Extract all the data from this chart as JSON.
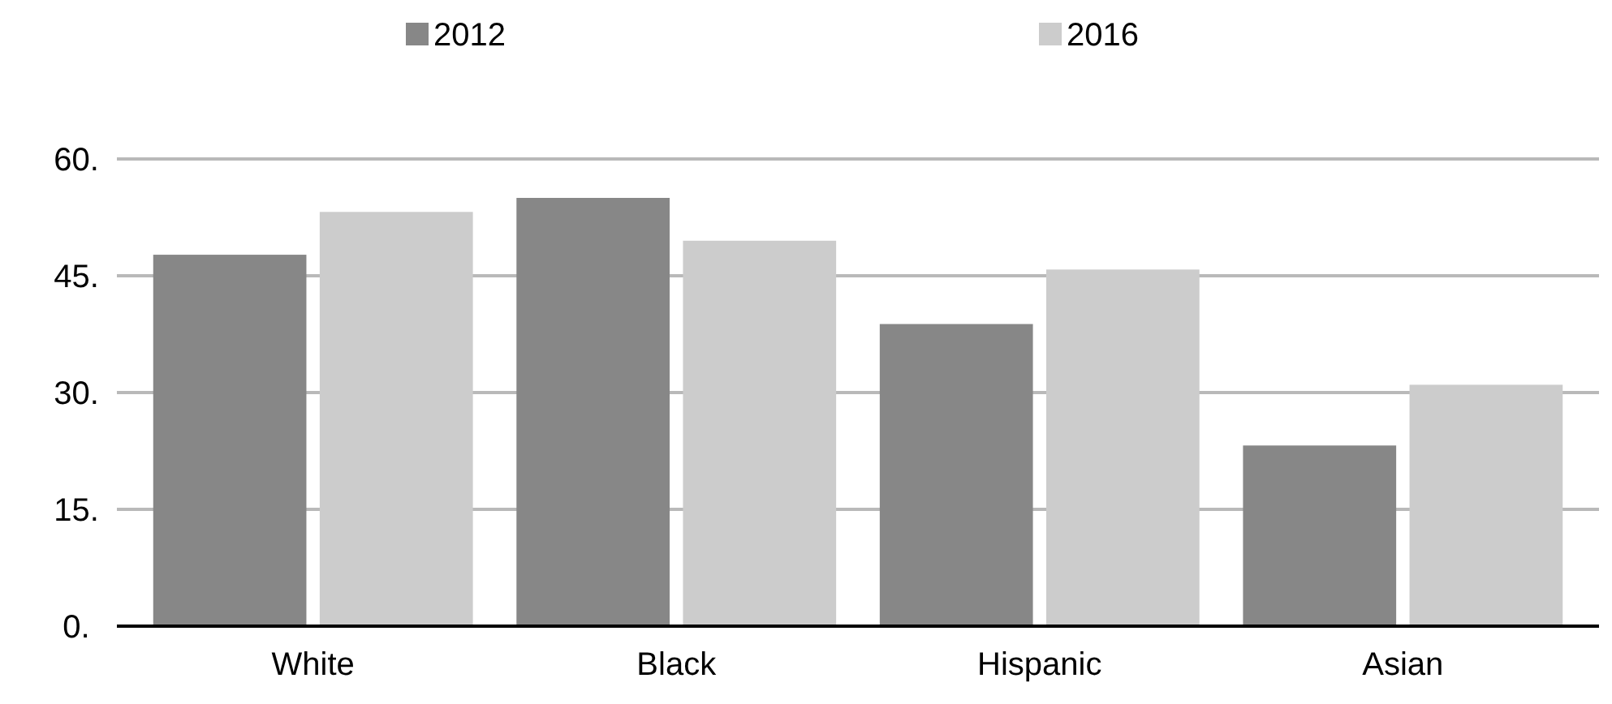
{
  "chart_data": {
    "type": "bar",
    "categories": [
      "White",
      "Black",
      "Hispanic",
      "Asian"
    ],
    "series": [
      {
        "name": "2012",
        "color": "#878787",
        "values": [
          47.7,
          55.0,
          38.8,
          23.2
        ]
      },
      {
        "name": "2016",
        "color": "#cccccc",
        "values": [
          53.2,
          49.5,
          45.8,
          31.0
        ]
      }
    ],
    "ylim": [
      0,
      60
    ],
    "yticks": [
      {
        "value": 0,
        "label": "0."
      },
      {
        "value": 15,
        "label": "15."
      },
      {
        "value": 30,
        "label": "30."
      },
      {
        "value": 45,
        "label": "45."
      },
      {
        "value": 60,
        "label": "60."
      }
    ],
    "grid": "y",
    "legend": "top"
  }
}
